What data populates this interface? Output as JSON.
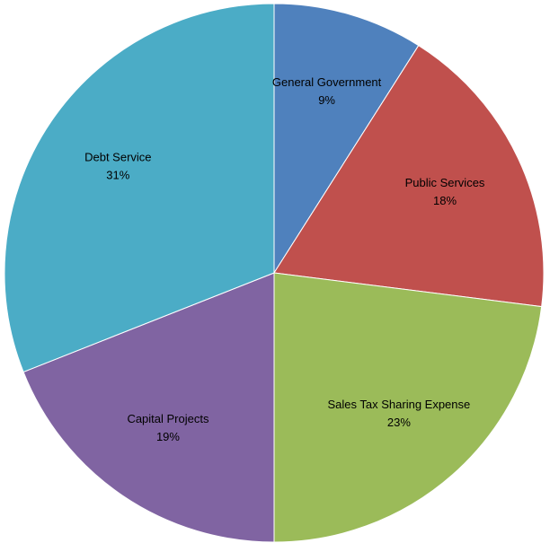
{
  "chart_data": {
    "type": "pie",
    "categories": [
      "General Government",
      "Public Services",
      "Sales Tax Sharing Expense",
      "Capital Projects",
      "Debt Service"
    ],
    "values": [
      9,
      18,
      23,
      19,
      31
    ],
    "value_labels": [
      "9%",
      "18%",
      "23%",
      "19%",
      "31%"
    ],
    "colors": [
      "#4f81bd",
      "#c0504d",
      "#9bbb59",
      "#8064a2",
      "#4bacc6"
    ]
  }
}
